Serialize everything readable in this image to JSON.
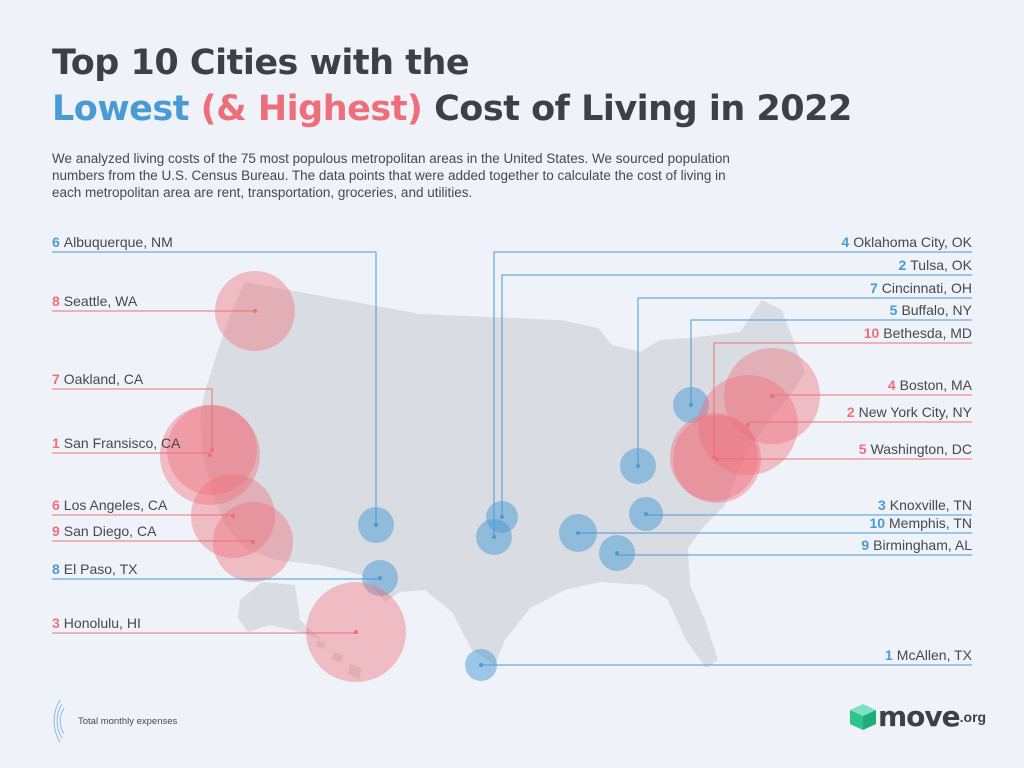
{
  "title": {
    "line1": "Top 10 Cities with the",
    "lowest": "Lowest",
    "highest": "(& Highest)",
    "rest": "Cost of Living in 2022"
  },
  "description": "We analyzed living costs of the 75 most populous metropolitan areas in the United States. We sourced population numbers from the U.S. Census Bureau. The data points that were added together to calculate the cost of living in each metropolitan area are rent, transportation, groceries, and utilities.",
  "colors": {
    "lowest": "#4a9ad4",
    "highest": "#ee6f7c",
    "map": "#d9dce2",
    "background": "#eff3f9"
  },
  "cities": [
    {
      "rank": "6",
      "name": "Albuquerque, NM",
      "group": "lowest"
    },
    {
      "rank": "8",
      "name": "Seattle, WA",
      "group": "highest"
    },
    {
      "rank": "7",
      "name": "Oakland, CA",
      "group": "highest"
    },
    {
      "rank": "1",
      "name": "San Fransisco, CA",
      "group": "highest"
    },
    {
      "rank": "6",
      "name": "Los Angeles, CA",
      "group": "highest"
    },
    {
      "rank": "9",
      "name": "San Diego, CA",
      "group": "highest"
    },
    {
      "rank": "8",
      "name": "El Paso, TX",
      "group": "lowest"
    },
    {
      "rank": "3",
      "name": "Honolulu, HI",
      "group": "highest"
    },
    {
      "rank": "4",
      "name": "Oklahoma City, OK",
      "group": "lowest"
    },
    {
      "rank": "2",
      "name": "Tulsa, OK",
      "group": "lowest"
    },
    {
      "rank": "7",
      "name": "Cincinnati, OH",
      "group": "lowest"
    },
    {
      "rank": "5",
      "name": "Buffalo, NY",
      "group": "lowest"
    },
    {
      "rank": "10",
      "name": "Bethesda, MD",
      "group": "highest"
    },
    {
      "rank": "4",
      "name": "Boston, MA",
      "group": "highest"
    },
    {
      "rank": "2",
      "name": "New York City, NY",
      "group": "highest"
    },
    {
      "rank": "5",
      "name": "Washington, DC",
      "group": "highest"
    },
    {
      "rank": "3",
      "name": "Knoxville, TN",
      "group": "lowest"
    },
    {
      "rank": "10",
      "name": "Memphis, TN",
      "group": "lowest"
    },
    {
      "rank": "9",
      "name": "Birmingham, AL",
      "group": "lowest"
    },
    {
      "rank": "1",
      "name": "McAllen, TX",
      "group": "lowest"
    }
  ],
  "legend": {
    "label": "Total monthly expenses"
  },
  "logo": {
    "word": "move",
    "suffix": ".org"
  }
}
